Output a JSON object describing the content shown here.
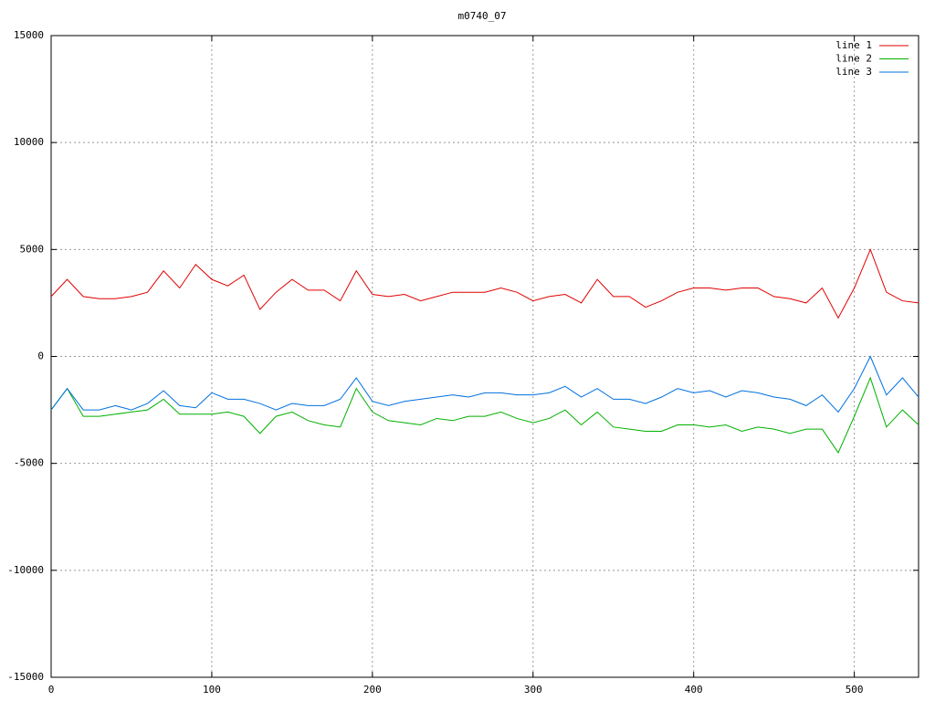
{
  "chart_data": {
    "type": "line",
    "title": "m0740_07",
    "x": [
      0,
      10,
      20,
      30,
      40,
      50,
      60,
      70,
      80,
      90,
      100,
      110,
      120,
      130,
      140,
      150,
      160,
      170,
      180,
      190,
      200,
      210,
      220,
      230,
      240,
      250,
      260,
      270,
      280,
      290,
      300,
      310,
      320,
      330,
      340,
      350,
      360,
      370,
      380,
      390,
      400,
      410,
      420,
      430,
      440,
      450,
      460,
      470,
      480,
      490,
      500,
      510,
      520,
      530,
      540
    ],
    "series": [
      {
        "name": "line 1",
        "color": "#e00000",
        "values": [
          2800,
          3600,
          2800,
          2700,
          2700,
          2800,
          3000,
          4000,
          3200,
          4300,
          3600,
          3300,
          3800,
          2200,
          3000,
          3600,
          3100,
          3100,
          2600,
          4000,
          2900,
          2800,
          2900,
          2600,
          2800,
          3000,
          3000,
          3000,
          3200,
          3000,
          2600,
          2800,
          2900,
          2500,
          3600,
          2800,
          2800,
          2300,
          2600,
          3000,
          3200,
          3200,
          3100,
          3200,
          3200,
          2800,
          2700,
          2500,
          3200,
          1800,
          3200,
          5000,
          3000,
          2600,
          2500
        ]
      },
      {
        "name": "line 2",
        "color": "#00b000",
        "values": [
          -2500,
          -1500,
          -2800,
          -2800,
          -2700,
          -2600,
          -2500,
          -2000,
          -2700,
          -2700,
          -2700,
          -2600,
          -2800,
          -3600,
          -2800,
          -2600,
          -3000,
          -3200,
          -3300,
          -1500,
          -2600,
          -3000,
          -3100,
          -3200,
          -2900,
          -3000,
          -2800,
          -2800,
          -2600,
          -2900,
          -3100,
          -2900,
          -2500,
          -3200,
          -2600,
          -3300,
          -3400,
          -3500,
          -3500,
          -3200,
          -3200,
          -3300,
          -3200,
          -3500,
          -3300,
          -3400,
          -3600,
          -3400,
          -3400,
          -4500,
          -2800,
          -1000,
          -3300,
          -2500,
          -3200
        ]
      },
      {
        "name": "line 3",
        "color": "#0070e0",
        "values": [
          -2500,
          -1500,
          -2500,
          -2500,
          -2300,
          -2500,
          -2200,
          -1600,
          -2300,
          -2400,
          -1700,
          -2000,
          -2000,
          -2200,
          -2500,
          -2200,
          -2300,
          -2300,
          -2000,
          -1000,
          -2100,
          -2300,
          -2100,
          -2000,
          -1900,
          -1800,
          -1900,
          -1700,
          -1700,
          -1800,
          -1800,
          -1700,
          -1400,
          -1900,
          -1500,
          -2000,
          -2000,
          -2200,
          -1900,
          -1500,
          -1700,
          -1600,
          -1900,
          -1600,
          -1700,
          -1900,
          -2000,
          -2300,
          -1800,
          -2600,
          -1500,
          0,
          -1800,
          -1000,
          -1900
        ]
      }
    ],
    "xlim": [
      0,
      540
    ],
    "xticks": [
      0,
      100,
      200,
      300,
      400,
      500
    ],
    "ylim": [
      -15000,
      15000
    ],
    "yticks": [
      -15000,
      -10000,
      -5000,
      0,
      5000,
      10000,
      15000
    ],
    "grid": true,
    "legend": "top-right"
  }
}
